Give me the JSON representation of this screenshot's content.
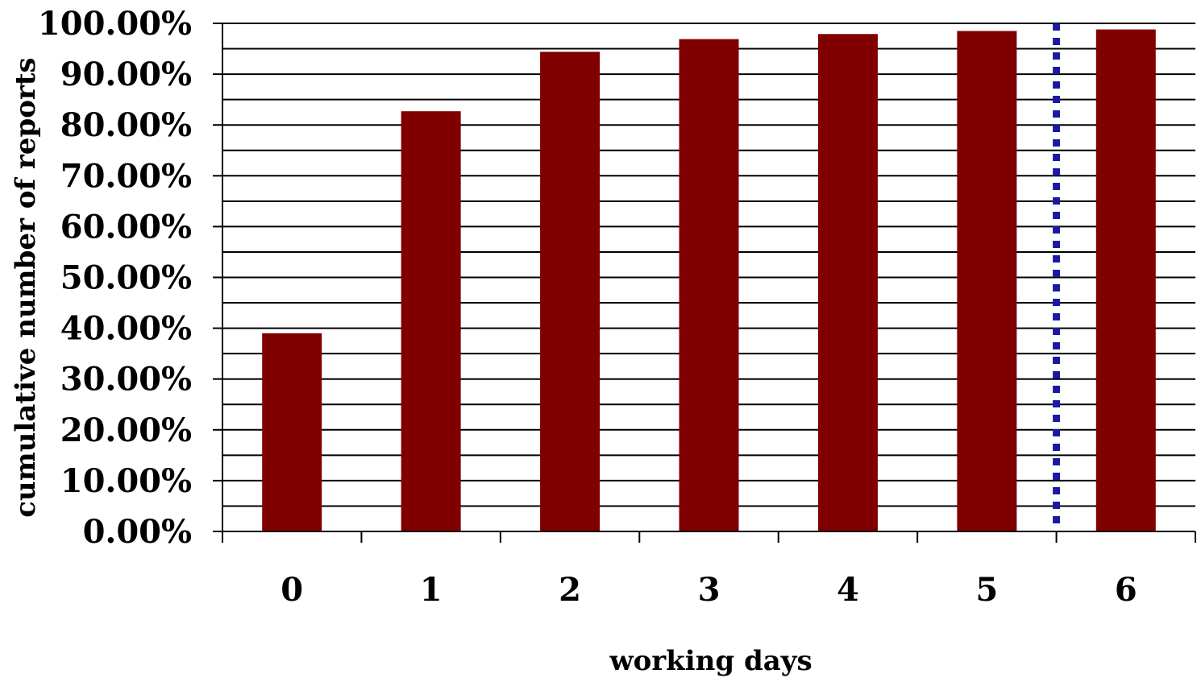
{
  "chart_data": {
    "type": "bar",
    "categories": [
      "0",
      "1",
      "2",
      "3",
      "4",
      "5",
      "6"
    ],
    "values": [
      39.0,
      82.7,
      94.4,
      96.9,
      97.9,
      98.5,
      98.8
    ],
    "value_unit": "percent",
    "title": "",
    "xlabel": "working days",
    "ylabel": "cumulative number of reports",
    "ylim": [
      0,
      100
    ],
    "y_ticks": [
      "0.00%",
      "10.00%",
      "20.00%",
      "30.00%",
      "40.00%",
      "50.00%",
      "60.00%",
      "70.00%",
      "80.00%",
      "90.00%",
      "100.00%"
    ],
    "grid": true,
    "minor_grid": true,
    "legend": "none",
    "bar_color": "#800000",
    "reference_line": {
      "between_categories": [
        "5",
        "6"
      ],
      "style": "dotted",
      "color": "#1a1aa0"
    }
  }
}
